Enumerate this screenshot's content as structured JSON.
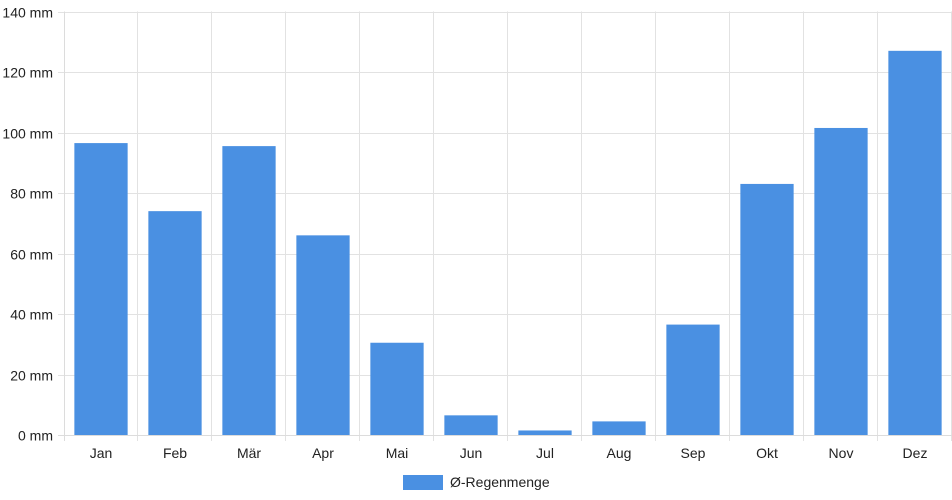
{
  "chart_data": {
    "type": "bar",
    "categories": [
      "Jan",
      "Feb",
      "Mär",
      "Apr",
      "Mai",
      "Jun",
      "Jul",
      "Aug",
      "Sep",
      "Okt",
      "Nov",
      "Dez"
    ],
    "series": [
      {
        "name": "Ø-Regenmenge",
        "color": "#4a90e2",
        "values": [
          96.5,
          74,
          95.5,
          66,
          30.5,
          6.5,
          1.5,
          4.5,
          36.5,
          83,
          101.5,
          127
        ]
      }
    ],
    "y_unit": "mm",
    "ylim": [
      0,
      140
    ],
    "y_ticks": [
      0,
      20,
      40,
      60,
      80,
      100,
      120,
      140
    ],
    "y_tick_labels": [
      "0 mm",
      "20 mm",
      "40 mm",
      "60 mm",
      "80 mm",
      "100 mm",
      "120 mm",
      "140 mm"
    ],
    "grid": true,
    "legend_position": "bottom-center"
  }
}
